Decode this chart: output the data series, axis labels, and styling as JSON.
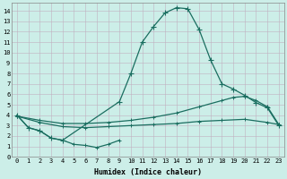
{
  "xlabel": "Humidex (Indice chaleur)",
  "bg_color": "#cceee8",
  "grid_color": "#c0b0c0",
  "line_color": "#1a6e60",
  "xlim": [
    -0.5,
    23.5
  ],
  "ylim": [
    0,
    14.8
  ],
  "xticks": [
    0,
    1,
    2,
    3,
    4,
    5,
    6,
    7,
    8,
    9,
    10,
    11,
    12,
    13,
    14,
    15,
    16,
    17,
    18,
    19,
    20,
    21,
    22,
    23
  ],
  "yticks": [
    0,
    1,
    2,
    3,
    4,
    5,
    6,
    7,
    8,
    9,
    10,
    11,
    12,
    13,
    14
  ],
  "line_bell_x": [
    0,
    1,
    2,
    3,
    4,
    9,
    10,
    11,
    12,
    13,
    14,
    15,
    16,
    17,
    18,
    19,
    20,
    21,
    22,
    23
  ],
  "line_bell_y": [
    4.0,
    2.8,
    2.5,
    1.8,
    1.6,
    5.3,
    8.0,
    11.0,
    12.5,
    13.8,
    14.3,
    14.2,
    12.2,
    9.3,
    7.0,
    6.5,
    5.9,
    5.2,
    4.7,
    3.0
  ],
  "line_flat_x": [
    0,
    2,
    4,
    6,
    8,
    10,
    12,
    14,
    16,
    18,
    20,
    22,
    23
  ],
  "line_flat_y": [
    3.9,
    3.3,
    2.9,
    2.8,
    2.9,
    3.0,
    3.1,
    3.2,
    3.4,
    3.5,
    3.6,
    3.3,
    3.1
  ],
  "line_mid_x": [
    0,
    2,
    4,
    6,
    8,
    10,
    12,
    14,
    16,
    18,
    19,
    20,
    21,
    22,
    23
  ],
  "line_mid_y": [
    3.9,
    3.5,
    3.2,
    3.2,
    3.3,
    3.5,
    3.8,
    4.2,
    4.8,
    5.4,
    5.7,
    5.8,
    5.4,
    4.8,
    3.1
  ],
  "line_dip_x": [
    0,
    1,
    2,
    3,
    4,
    5,
    6,
    7,
    8,
    9
  ],
  "line_dip_y": [
    4.0,
    2.8,
    2.5,
    1.8,
    1.6,
    1.2,
    1.1,
    0.9,
    1.2,
    1.6
  ],
  "marker_size": 3,
  "line_width": 0.9,
  "tick_fontsize": 5.0,
  "label_fontsize": 6.0
}
